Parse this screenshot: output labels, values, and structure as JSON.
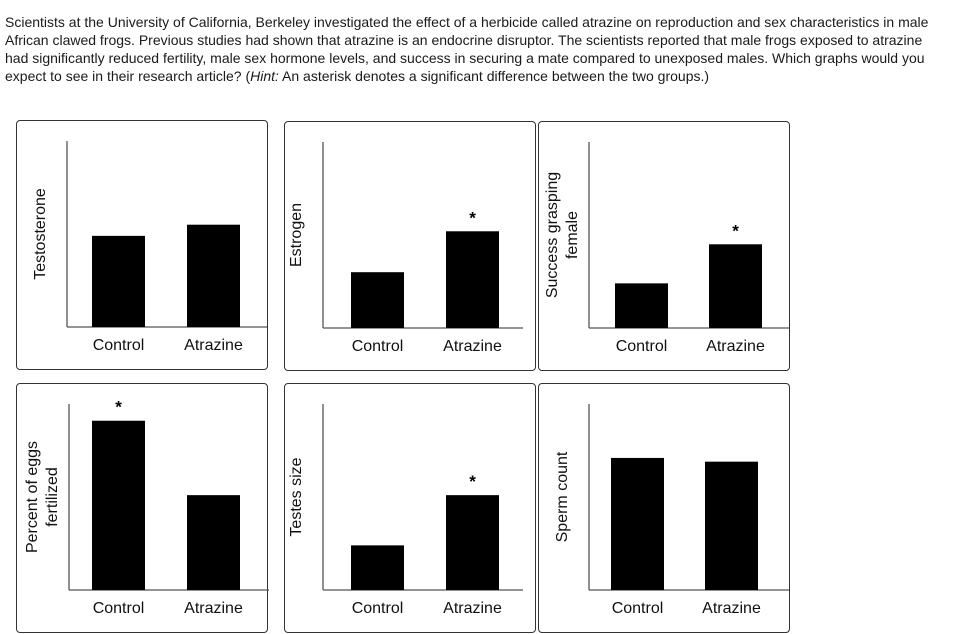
{
  "question": {
    "text_before_hint": "Scientists at the University of California, Berkeley investigated the effect of a herbicide called atrazine on reproduction and sex characteristics in male African clawed frogs. Previous studies had shown that atrazine is an endocrine disruptor. The scientists reported that male frogs exposed to atrazine had significantly reduced fertility, male sex hormone levels, and success in securing a mate compared to unexposed males. Which graphs would you expect to see in their research article? (",
    "hint_label": "Hint:",
    "text_after_hint": " An asterisk denotes a significant difference between the two groups.)"
  },
  "chart_data": [
    {
      "type": "bar",
      "ylabel": [
        "Testosterone"
      ],
      "categories": [
        "Control",
        "Atrazine"
      ],
      "values": [
        49,
        55
      ],
      "significant": [
        false,
        false
      ],
      "asterisk": "*",
      "ylim": [
        0,
        100
      ]
    },
    {
      "type": "bar",
      "ylabel": [
        "Estrogen"
      ],
      "categories": [
        "Control",
        "Atrazine"
      ],
      "values": [
        30,
        52
      ],
      "significant": [
        false,
        true
      ],
      "asterisk": "*",
      "ylim": [
        0,
        100
      ]
    },
    {
      "type": "bar",
      "ylabel": [
        "Success grasping",
        "female"
      ],
      "categories": [
        "Control",
        "Atrazine"
      ],
      "values": [
        24,
        45
      ],
      "significant": [
        false,
        true
      ],
      "asterisk": "*",
      "ylim": [
        0,
        100
      ]
    },
    {
      "type": "bar",
      "ylabel": [
        "Percent of eggs",
        "fertilized"
      ],
      "categories": [
        "Control",
        "Atrazine"
      ],
      "values": [
        91,
        51
      ],
      "significant": [
        true,
        false
      ],
      "asterisk": "*",
      "ylim": [
        0,
        100
      ]
    },
    {
      "type": "bar",
      "ylabel": [
        "Testes size"
      ],
      "categories": [
        "Control",
        "Atrazine"
      ],
      "values": [
        24,
        51
      ],
      "significant": [
        false,
        true
      ],
      "asterisk": "*",
      "ylim": [
        0,
        100
      ]
    },
    {
      "type": "bar",
      "ylabel": [
        "Sperm count"
      ],
      "categories": [
        "Control",
        "Atrazine"
      ],
      "values": [
        71,
        69
      ],
      "significant": [
        false,
        false
      ],
      "asterisk": "*",
      "ylim": [
        0,
        100
      ]
    }
  ]
}
